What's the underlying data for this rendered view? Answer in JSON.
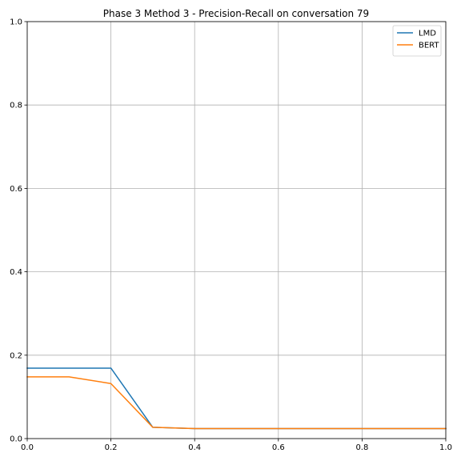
{
  "chart_data": {
    "type": "line",
    "title": "Phase 3 Method 3 - Precision-Recall on conversation 79",
    "xlabel": "",
    "ylabel": "",
    "xlim": [
      0,
      1
    ],
    "ylim": [
      0,
      1
    ],
    "x_ticks": [
      "0.0",
      "0.2",
      "0.4",
      "0.6",
      "0.8",
      "1.0"
    ],
    "y_ticks": [
      "0.0",
      "0.2",
      "0.4",
      "0.6",
      "0.8",
      "1.0"
    ],
    "grid": true,
    "legend_position": "top-right",
    "series": [
      {
        "name": "LMD",
        "color": "#1f77b4",
        "x": [
          0.0,
          0.1,
          0.2,
          0.3,
          0.4,
          0.5,
          0.6,
          0.7,
          0.8,
          0.9,
          1.0
        ],
        "y": [
          0.169,
          0.169,
          0.169,
          0.027,
          0.024,
          0.024,
          0.024,
          0.024,
          0.024,
          0.024,
          0.024
        ]
      },
      {
        "name": "BERT",
        "color": "#ff7f0e",
        "x": [
          0.0,
          0.1,
          0.2,
          0.3,
          0.4,
          0.5,
          0.6,
          0.7,
          0.8,
          0.9,
          1.0
        ],
        "y": [
          0.148,
          0.148,
          0.132,
          0.027,
          0.024,
          0.024,
          0.024,
          0.024,
          0.024,
          0.024,
          0.024
        ]
      }
    ]
  }
}
